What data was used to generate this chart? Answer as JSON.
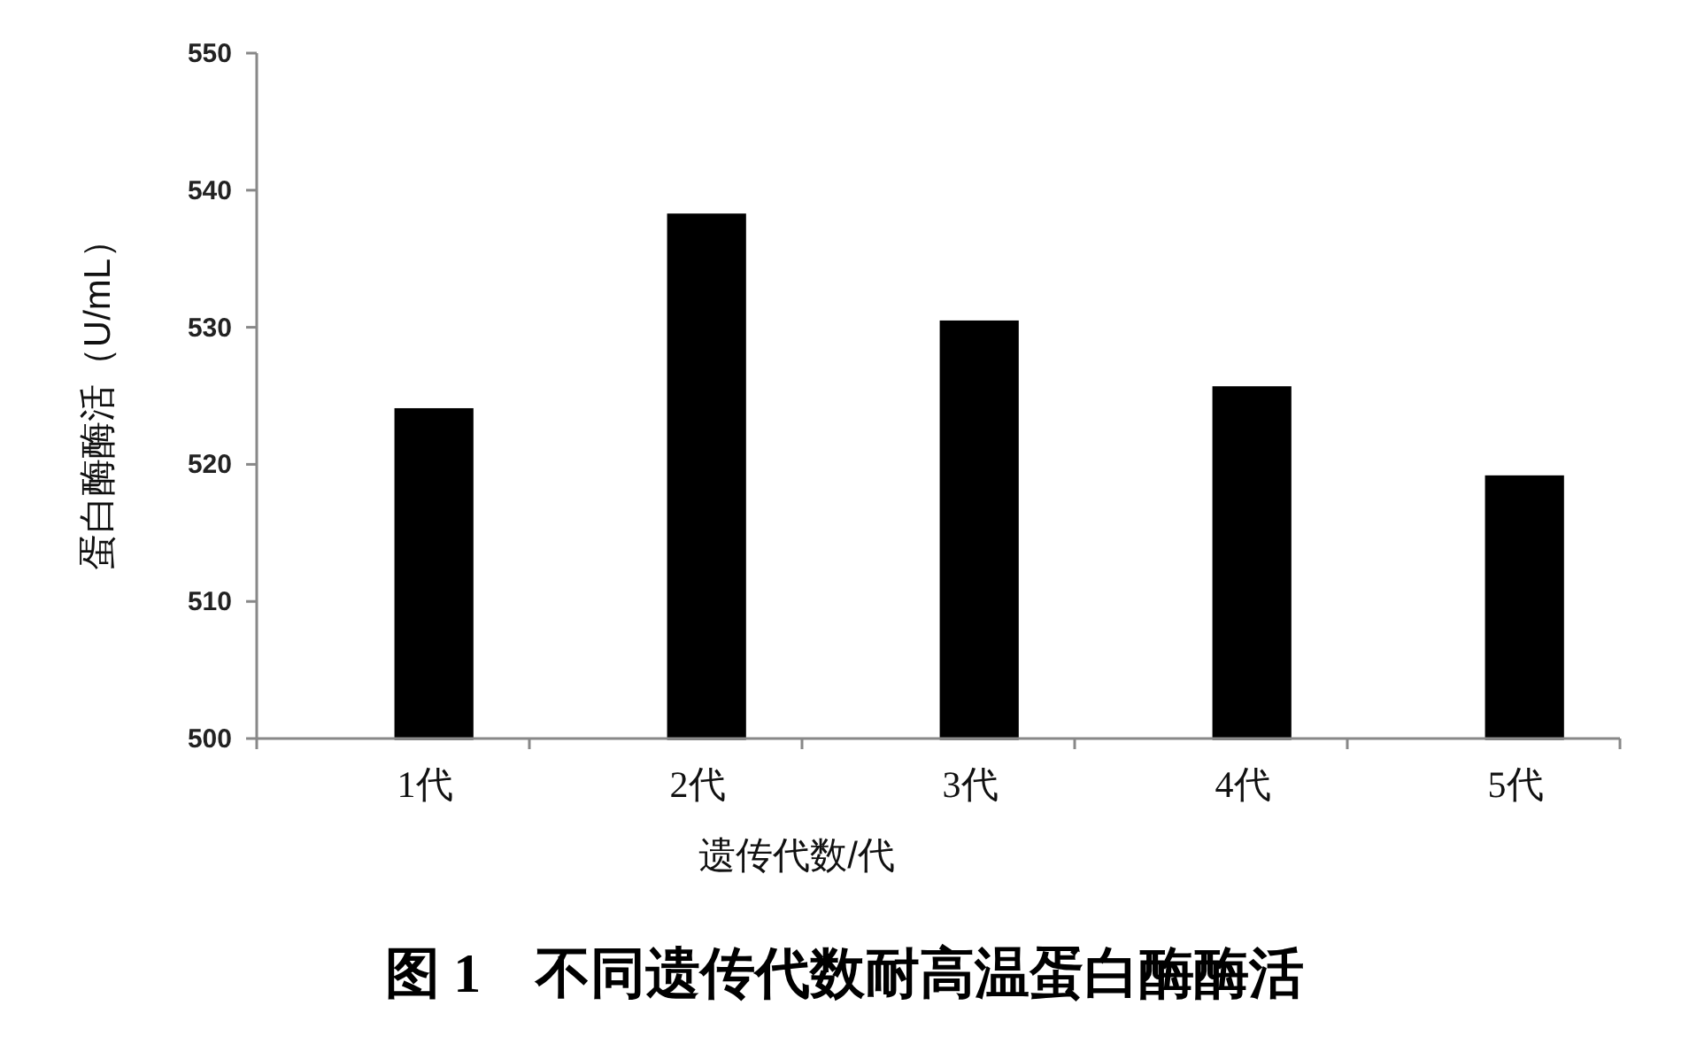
{
  "chart_data": {
    "type": "bar",
    "title": "图 1　不同遗传代数耐高温蛋白酶酶活",
    "xlabel": "遗传代数/代",
    "ylabel": "蛋白酶酶活（U/mL）",
    "categories": [
      "1代",
      "2代",
      "3代",
      "4代",
      "5代"
    ],
    "series": [
      {
        "color": "#4f6b8a",
        "values": [
          500,
          500,
          500,
          500,
          500
        ]
      },
      {
        "color": "#000000",
        "values": [
          524,
          538.2,
          530.4,
          525.6,
          519.1
        ]
      }
    ],
    "ylim": [
      500,
      550
    ],
    "yticks": [
      500,
      510,
      520,
      530,
      540,
      550
    ]
  }
}
